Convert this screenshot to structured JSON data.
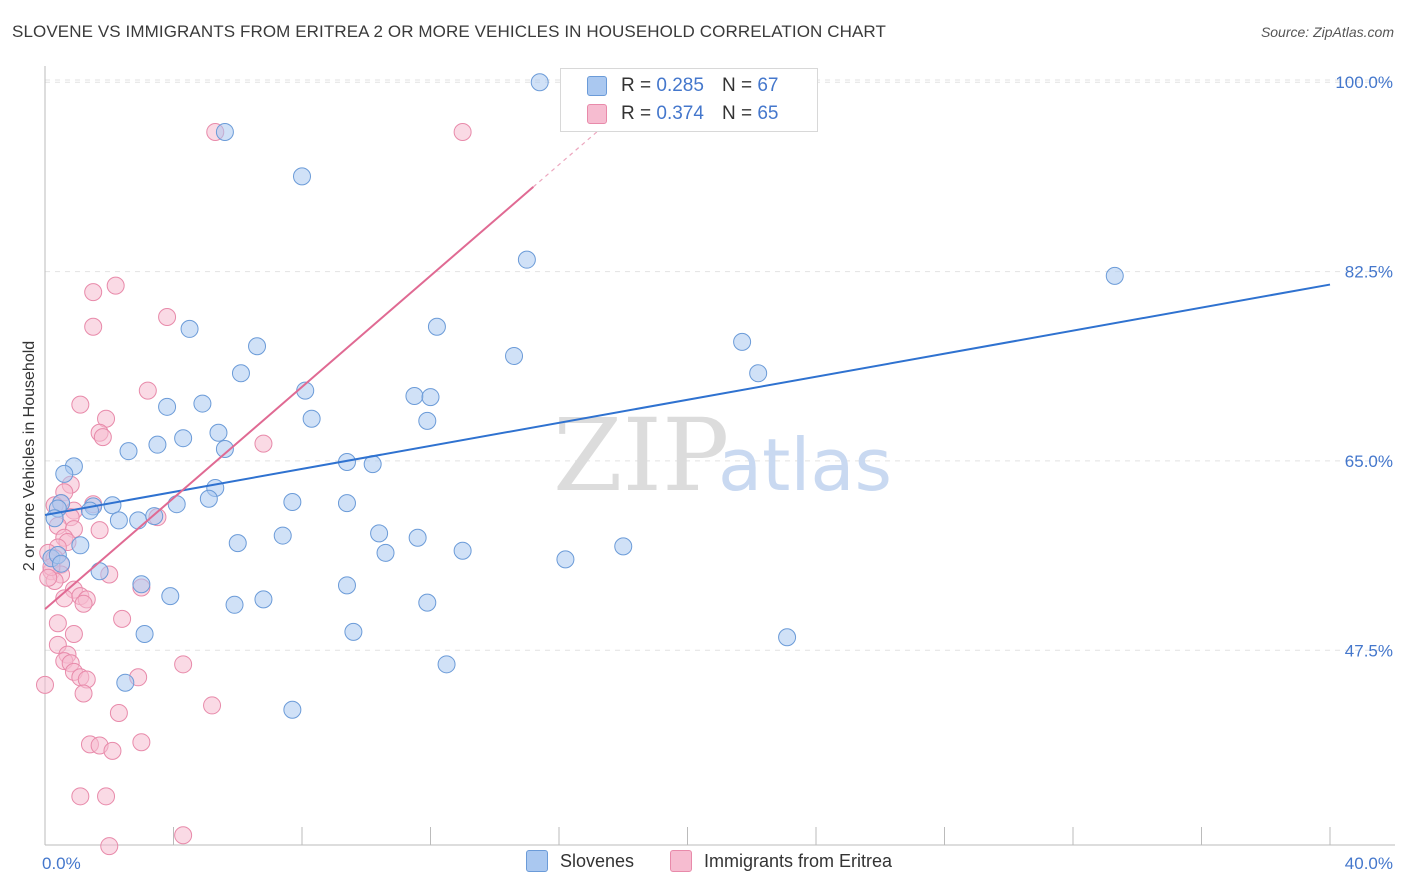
{
  "header": {
    "title": "SLOVENE VS IMMIGRANTS FROM ERITREA 2 OR MORE VEHICLES IN HOUSEHOLD CORRELATION CHART",
    "source": "Source: ZipAtlas.com"
  },
  "legend": {
    "rows": [
      {
        "r_label": "R =",
        "r_value": "0.285",
        "n_label": "N =",
        "n_value": "67"
      },
      {
        "r_label": "R =",
        "r_value": "0.374",
        "n_label": "N =",
        "n_value": "65"
      }
    ]
  },
  "watermark": {
    "part1": "ZIP",
    "part2": "atlas"
  },
  "colors": {
    "blue_fill": "#aac8f0",
    "blue_stroke": "#6b9bd8",
    "blue_line": "#2f72d0",
    "pink_fill": "#f6bcd0",
    "pink_stroke": "#e88aaa",
    "pink_line": "#e06a93",
    "grid": "#e2e2e2",
    "tick_text": "#4477cc"
  },
  "chart_data": {
    "type": "scatter",
    "title": "SLOVENE VS IMMIGRANTS FROM ERITREA 2 OR MORE VEHICLES IN HOUSEHOLD CORRELATION CHART",
    "xlabel": "",
    "ylabel": "2 or more Vehicles in Household",
    "xlim": [
      0,
      40
    ],
    "ylim": [
      29.5,
      101.5
    ],
    "x_tick_labels": [
      "0.0%",
      "40.0%"
    ],
    "y_ticks": [
      47.5,
      65.0,
      82.5,
      100.0
    ],
    "y_tick_labels": [
      "47.5%",
      "65.0%",
      "82.5%",
      "100.0%"
    ],
    "grid": true,
    "legend_position": "top-center",
    "series": [
      {
        "name": "Slovenes",
        "color": "#aac8f0",
        "trend": {
          "x": [
            0,
            40
          ],
          "y": [
            60.0,
            81.3
          ],
          "dashed_extension": false
        },
        "points": [
          [
            15.4,
            100.0
          ],
          [
            5.6,
            95.4
          ],
          [
            8.0,
            91.3
          ],
          [
            15.0,
            83.6
          ],
          [
            33.3,
            82.1
          ],
          [
            4.5,
            77.2
          ],
          [
            6.6,
            75.6
          ],
          [
            12.2,
            77.4
          ],
          [
            14.6,
            74.7
          ],
          [
            21.7,
            76.0
          ],
          [
            22.2,
            73.1
          ],
          [
            6.1,
            73.1
          ],
          [
            3.8,
            70.0
          ],
          [
            4.9,
            70.3
          ],
          [
            8.1,
            71.5
          ],
          [
            11.5,
            71.0
          ],
          [
            12.0,
            70.9
          ],
          [
            8.3,
            68.9
          ],
          [
            11.9,
            68.7
          ],
          [
            4.3,
            67.1
          ],
          [
            5.4,
            67.6
          ],
          [
            3.5,
            66.5
          ],
          [
            5.6,
            66.1
          ],
          [
            2.6,
            65.9
          ],
          [
            9.4,
            64.9
          ],
          [
            10.2,
            64.7
          ],
          [
            0.9,
            64.5
          ],
          [
            0.6,
            63.8
          ],
          [
            5.3,
            62.5
          ],
          [
            7.7,
            61.2
          ],
          [
            9.4,
            61.1
          ],
          [
            4.1,
            61.0
          ],
          [
            5.1,
            61.5
          ],
          [
            0.5,
            61.1
          ],
          [
            1.5,
            60.8
          ],
          [
            2.1,
            60.9
          ],
          [
            0.4,
            60.6
          ],
          [
            1.4,
            60.4
          ],
          [
            0.3,
            59.7
          ],
          [
            2.3,
            59.5
          ],
          [
            2.9,
            59.5
          ],
          [
            3.4,
            59.9
          ],
          [
            1.1,
            57.2
          ],
          [
            6.0,
            57.4
          ],
          [
            7.4,
            58.1
          ],
          [
            10.4,
            58.3
          ],
          [
            10.6,
            56.5
          ],
          [
            11.6,
            57.9
          ],
          [
            16.2,
            55.9
          ],
          [
            18.0,
            57.1
          ],
          [
            13.0,
            56.7
          ],
          [
            0.2,
            56.0
          ],
          [
            0.4,
            56.3
          ],
          [
            1.7,
            54.8
          ],
          [
            3.0,
            53.6
          ],
          [
            3.9,
            52.5
          ],
          [
            5.9,
            51.7
          ],
          [
            6.8,
            52.2
          ],
          [
            9.4,
            53.5
          ],
          [
            11.9,
            51.9
          ],
          [
            9.6,
            49.2
          ],
          [
            3.1,
            49.0
          ],
          [
            23.1,
            48.7
          ],
          [
            12.5,
            46.2
          ],
          [
            2.5,
            44.5
          ],
          [
            7.7,
            42.0
          ],
          [
            0.5,
            55.5
          ]
        ]
      },
      {
        "name": "Immigrants from Eritrea",
        "color": "#f6bcd0",
        "trend": {
          "x": [
            0,
            18.5
          ],
          "y": [
            51.3,
            98.8
          ],
          "solid_to_x": 15.2
        },
        "points": [
          [
            5.3,
            95.4
          ],
          [
            13.0,
            95.4
          ],
          [
            2.2,
            81.2
          ],
          [
            1.5,
            80.6
          ],
          [
            3.8,
            78.3
          ],
          [
            1.5,
            77.4
          ],
          [
            3.2,
            71.5
          ],
          [
            1.1,
            70.2
          ],
          [
            1.9,
            68.9
          ],
          [
            1.7,
            67.6
          ],
          [
            1.8,
            67.2
          ],
          [
            6.8,
            66.6
          ],
          [
            0.8,
            62.8
          ],
          [
            0.6,
            62.1
          ],
          [
            0.5,
            61.1
          ],
          [
            1.5,
            61.0
          ],
          [
            0.3,
            60.9
          ],
          [
            0.9,
            60.4
          ],
          [
            0.8,
            59.8
          ],
          [
            3.5,
            59.8
          ],
          [
            0.4,
            59.0
          ],
          [
            0.9,
            58.7
          ],
          [
            1.7,
            58.6
          ],
          [
            0.6,
            57.9
          ],
          [
            0.7,
            57.5
          ],
          [
            0.4,
            57.0
          ],
          [
            0.1,
            56.5
          ],
          [
            0.3,
            56.0
          ],
          [
            0.5,
            55.4
          ],
          [
            0.2,
            54.8
          ],
          [
            0.5,
            54.5
          ],
          [
            2.0,
            54.5
          ],
          [
            0.3,
            53.9
          ],
          [
            3.0,
            53.3
          ],
          [
            0.9,
            53.1
          ],
          [
            0.6,
            52.3
          ],
          [
            1.1,
            52.5
          ],
          [
            1.3,
            52.2
          ],
          [
            1.2,
            51.8
          ],
          [
            2.4,
            50.4
          ],
          [
            0.4,
            50.0
          ],
          [
            0.9,
            49.0
          ],
          [
            0.4,
            48.0
          ],
          [
            0.7,
            47.1
          ],
          [
            0.6,
            46.5
          ],
          [
            0.8,
            46.3
          ],
          [
            4.3,
            46.2
          ],
          [
            0.9,
            45.5
          ],
          [
            1.1,
            45.0
          ],
          [
            2.9,
            45.0
          ],
          [
            1.3,
            44.8
          ],
          [
            0.0,
            44.3
          ],
          [
            1.2,
            43.5
          ],
          [
            5.2,
            42.4
          ],
          [
            2.3,
            41.7
          ],
          [
            3.0,
            39.0
          ],
          [
            1.4,
            38.8
          ],
          [
            1.7,
            38.7
          ],
          [
            2.1,
            38.2
          ],
          [
            1.1,
            34.0
          ],
          [
            1.9,
            34.0
          ],
          [
            4.3,
            30.4
          ],
          [
            2.0,
            29.4
          ],
          [
            0.2,
            55.2
          ],
          [
            0.1,
            54.2
          ]
        ]
      }
    ]
  },
  "bottom_legend": {
    "items": [
      {
        "label": "Slovenes"
      },
      {
        "label": "Immigrants from Eritrea"
      }
    ]
  }
}
